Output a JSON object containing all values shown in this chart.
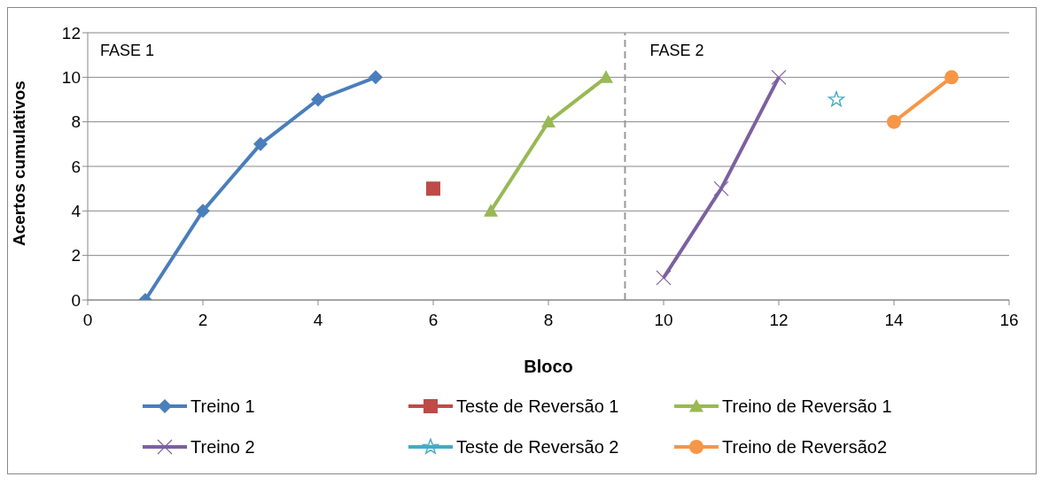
{
  "chart_data": {
    "type": "line",
    "xlabel": "Bloco",
    "ylabel": "Acertos cumulativos",
    "xlim": [
      0,
      16
    ],
    "xticks": [
      0,
      2,
      4,
      6,
      8,
      10,
      12,
      14,
      16
    ],
    "ylim": [
      0,
      12
    ],
    "yticks": [
      0,
      2,
      4,
      6,
      8,
      10,
      12
    ],
    "grid": "y",
    "legend": "bottom",
    "line_style": "solid",
    "series": [
      {
        "name": "Treino 1",
        "color": "#4a7ebb",
        "marker": "diamond",
        "x": [
          1,
          2,
          3,
          4,
          5
        ],
        "values": [
          0,
          4,
          7,
          9,
          10
        ]
      },
      {
        "name": "Teste de Reversão 1",
        "color": "#be4b48",
        "marker": "square",
        "x": [
          6
        ],
        "values": [
          5
        ]
      },
      {
        "name": "Treino de Reversão 1",
        "color": "#98b954",
        "marker": "triangle",
        "x": [
          7,
          8,
          9
        ],
        "values": [
          4,
          8,
          10
        ]
      },
      {
        "name": "Treino 2",
        "color": "#7d60a0",
        "marker": "cross",
        "x": [
          10,
          11,
          12
        ],
        "values": [
          1,
          5,
          10
        ]
      },
      {
        "name": "Teste de Reversão 2",
        "color": "#46aac5",
        "marker": "star",
        "x": [
          13
        ],
        "values": [
          9
        ]
      },
      {
        "name": "Treino de Reversão2",
        "color": "#f79646",
        "marker": "circle",
        "x": [
          14,
          15
        ],
        "values": [
          8,
          10
        ]
      }
    ],
    "ref_lines": [
      {
        "axis": "x",
        "value": 9.33,
        "color": "#999999",
        "line_style": "dashed"
      }
    ],
    "annotations": [
      "FASE 1",
      "FASE 2"
    ]
  }
}
